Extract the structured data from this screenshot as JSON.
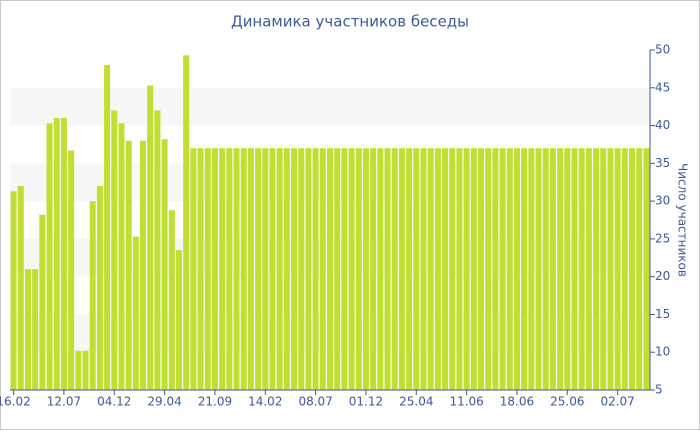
{
  "chart_data": {
    "type": "bar",
    "title": "Динамика участников беседы",
    "y_label": "Число участников",
    "categories": [
      "16.02",
      null,
      null,
      null,
      null,
      null,
      null,
      "12.07",
      null,
      null,
      null,
      null,
      null,
      null,
      "04.12",
      null,
      null,
      null,
      null,
      null,
      null,
      "29.04",
      null,
      null,
      null,
      null,
      null,
      null,
      "21.09",
      null,
      null,
      null,
      null,
      null,
      null,
      "14.02",
      null,
      null,
      null,
      null,
      null,
      null,
      "08.07",
      null,
      null,
      null,
      null,
      null,
      null,
      "01.12",
      null,
      null,
      null,
      null,
      null,
      null,
      "25.04",
      null,
      null,
      null,
      null,
      null,
      null,
      "11.06",
      null,
      null,
      null,
      null,
      null,
      null,
      "18.06",
      null,
      null,
      null,
      null,
      null,
      null,
      "25.06",
      null,
      null,
      null,
      null,
      null,
      null,
      "02.07",
      null,
      null,
      null,
      null
    ],
    "values": [
      31.3,
      32,
      21,
      21,
      28.2,
      40.3,
      41,
      41,
      36.7,
      10.2,
      10.2,
      30,
      32,
      48,
      42,
      40.3,
      38,
      25.3,
      38,
      45.3,
      42,
      38.2,
      28.8,
      23.5,
      49.3,
      37,
      37,
      37,
      37,
      37,
      37,
      37,
      37,
      37,
      37,
      37,
      37,
      37,
      37,
      37,
      37,
      37,
      37,
      37,
      37,
      37,
      37,
      37,
      37,
      37,
      37,
      37,
      37,
      37,
      37,
      37,
      37,
      37,
      37,
      37,
      37,
      37,
      37,
      37,
      37,
      37,
      37,
      37,
      37,
      37,
      37,
      37,
      37,
      37,
      37,
      37,
      37,
      37,
      37,
      37,
      37,
      37,
      37,
      37,
      37,
      37,
      37,
      37,
      37
    ],
    "color": "#bfe033",
    "ylim": [
      5,
      50
    ],
    "yticks": [
      5,
      10,
      15,
      20,
      25,
      30,
      35,
      40,
      45,
      50
    ],
    "grid": "bands",
    "y_axis_side": "right"
  }
}
